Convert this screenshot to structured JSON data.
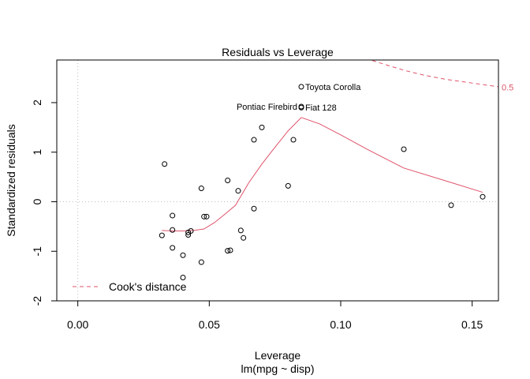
{
  "chart_data": {
    "type": "scatter",
    "title": "Residuals vs Leverage",
    "xlabel": "Leverage",
    "xlabel_sub": "lm(mpg ~ disp)",
    "ylabel": "Standardized residuals",
    "xlim": [
      -0.008,
      0.16
    ],
    "ylim": [
      -2.0,
      2.86
    ],
    "xticks": [
      0.0,
      0.05,
      0.1,
      0.15
    ],
    "xtick_labels": [
      "0.00",
      "0.05",
      "0.10",
      "0.15"
    ],
    "yticks": [
      -2,
      -1,
      0,
      1,
      2
    ],
    "ytick_labels": [
      "-2",
      "-1",
      "0",
      "1",
      "2"
    ],
    "grid": false,
    "reference_lines": {
      "x": 0,
      "y": 0
    },
    "points": [
      {
        "x": 0.032,
        "y": -0.68
      },
      {
        "x": 0.033,
        "y": 0.76
      },
      {
        "x": 0.036,
        "y": -0.28
      },
      {
        "x": 0.036,
        "y": -0.57
      },
      {
        "x": 0.036,
        "y": -0.93
      },
      {
        "x": 0.04,
        "y": -1.08
      },
      {
        "x": 0.04,
        "y": -1.53
      },
      {
        "x": 0.042,
        "y": -0.62
      },
      {
        "x": 0.042,
        "y": -0.67
      },
      {
        "x": 0.043,
        "y": -0.59
      },
      {
        "x": 0.047,
        "y": 0.27
      },
      {
        "x": 0.047,
        "y": -1.22
      },
      {
        "x": 0.048,
        "y": -0.3
      },
      {
        "x": 0.049,
        "y": -0.3
      },
      {
        "x": 0.057,
        "y": 0.43
      },
      {
        "x": 0.057,
        "y": -0.99
      },
      {
        "x": 0.058,
        "y": -0.98
      },
      {
        "x": 0.061,
        "y": 0.22
      },
      {
        "x": 0.062,
        "y": -0.58
      },
      {
        "x": 0.063,
        "y": -0.73
      },
      {
        "x": 0.067,
        "y": -0.14
      },
      {
        "x": 0.067,
        "y": 1.25
      },
      {
        "x": 0.07,
        "y": 1.5
      },
      {
        "x": 0.08,
        "y": 0.32
      },
      {
        "x": 0.082,
        "y": 1.25
      },
      {
        "x": 0.085,
        "y": 2.32
      },
      {
        "x": 0.085,
        "y": 1.9
      },
      {
        "x": 0.085,
        "y": 1.92
      },
      {
        "x": 0.124,
        "y": 1.06
      },
      {
        "x": 0.142,
        "y": -0.07
      },
      {
        "x": 0.154,
        "y": 0.1
      }
    ],
    "point_labels": [
      {
        "text": "Toyota Corolla",
        "x": 0.085,
        "y": 2.32,
        "anchor": "start"
      },
      {
        "text": "Pontiac Firebird",
        "x": 0.085,
        "y": 1.92,
        "anchor": "end"
      },
      {
        "text": "Fiat 128",
        "x": 0.085,
        "y": 1.9,
        "anchor": "start"
      }
    ],
    "smooth_line": {
      "x": [
        0.032,
        0.036,
        0.04,
        0.044,
        0.048,
        0.052,
        0.056,
        0.06,
        0.065,
        0.07,
        0.075,
        0.08,
        0.085,
        0.092,
        0.1,
        0.11,
        0.124,
        0.14,
        0.154
      ],
      "y": [
        -0.58,
        -0.59,
        -0.59,
        -0.58,
        -0.55,
        -0.42,
        -0.25,
        -0.07,
        0.38,
        0.76,
        1.1,
        1.43,
        1.7,
        1.57,
        1.35,
        1.06,
        0.68,
        0.42,
        0.19
      ]
    },
    "cooks_contour": {
      "label": "0.5",
      "x": [
        0.112,
        0.118,
        0.125,
        0.132,
        0.14,
        0.148,
        0.156,
        0.16
      ],
      "y": [
        2.85,
        2.75,
        2.64,
        2.55,
        2.47,
        2.41,
        2.35,
        2.32
      ]
    },
    "legend": {
      "position": "bottom-left",
      "entries": [
        {
          "label": "Cook's distance",
          "style": "dashed",
          "color": "#DF536B"
        }
      ]
    },
    "colors": {
      "points": "#000000",
      "smooth": "#DF536B",
      "contour": "#DF536B",
      "reference": "#BEBEBE",
      "axis": "#000000"
    }
  }
}
